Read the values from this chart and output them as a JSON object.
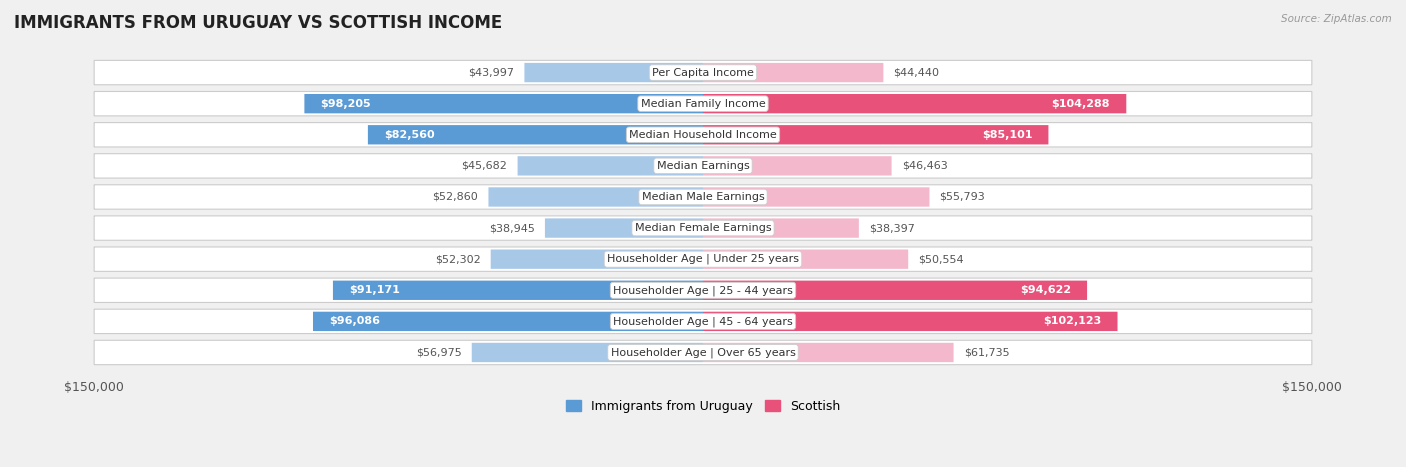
{
  "title": "IMMIGRANTS FROM URUGUAY VS SCOTTISH INCOME",
  "source": "Source: ZipAtlas.com",
  "categories": [
    "Per Capita Income",
    "Median Family Income",
    "Median Household Income",
    "Median Earnings",
    "Median Male Earnings",
    "Median Female Earnings",
    "Householder Age | Under 25 years",
    "Householder Age | 25 - 44 years",
    "Householder Age | 45 - 64 years",
    "Householder Age | Over 65 years"
  ],
  "uruguay_values": [
    43997,
    98205,
    82560,
    45682,
    52860,
    38945,
    52302,
    91171,
    96086,
    56975
  ],
  "scottish_values": [
    44440,
    104288,
    85101,
    46463,
    55793,
    38397,
    50554,
    94622,
    102123,
    61735
  ],
  "uruguay_labels": [
    "$43,997",
    "$98,205",
    "$82,560",
    "$45,682",
    "$52,860",
    "$38,945",
    "$52,302",
    "$91,171",
    "$96,086",
    "$56,975"
  ],
  "scottish_labels": [
    "$44,440",
    "$104,288",
    "$85,101",
    "$46,463",
    "$55,793",
    "$38,397",
    "$50,554",
    "$94,622",
    "$102,123",
    "$61,735"
  ],
  "uruguay_color_light": "#a8c8e8",
  "uruguay_color_dark": "#5b9bd5",
  "scottish_color_light": "#f4b8cc",
  "scottish_color_dark": "#e8527a",
  "label_color_inside": "#ffffff",
  "label_color_outside": "#555555",
  "max_value": 150000,
  "background_color": "#f0f0f0",
  "row_bg_color": "#ffffff",
  "row_border_color": "#cccccc",
  "title_fontsize": 12,
  "label_fontsize": 8,
  "category_fontsize": 8,
  "axis_label_fontsize": 9,
  "inside_label_threshold": 65000,
  "legend_uruguay": "Immigrants from Uruguay",
  "legend_scottish": "Scottish"
}
